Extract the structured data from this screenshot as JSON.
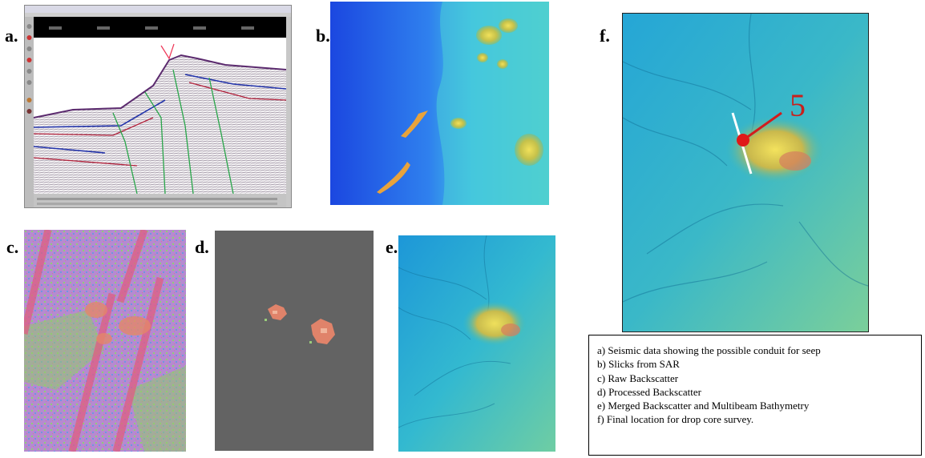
{
  "panels": {
    "a": {
      "label": "a."
    },
    "b": {
      "label": "b."
    },
    "c": {
      "label": "c."
    },
    "d": {
      "label": "d."
    },
    "e": {
      "label": "e."
    },
    "f": {
      "label": "f.",
      "marker_label": "5"
    }
  },
  "legend": {
    "items": [
      "a) Seismic data showing the possible conduit for seep",
      "b) Slicks from SAR",
      "c) Raw Backscatter",
      "d) Processed  Backscatter",
      "e) Merged Backscatter and Multibeam Bathymetry",
      "f) Final location for drop core survey."
    ]
  }
}
